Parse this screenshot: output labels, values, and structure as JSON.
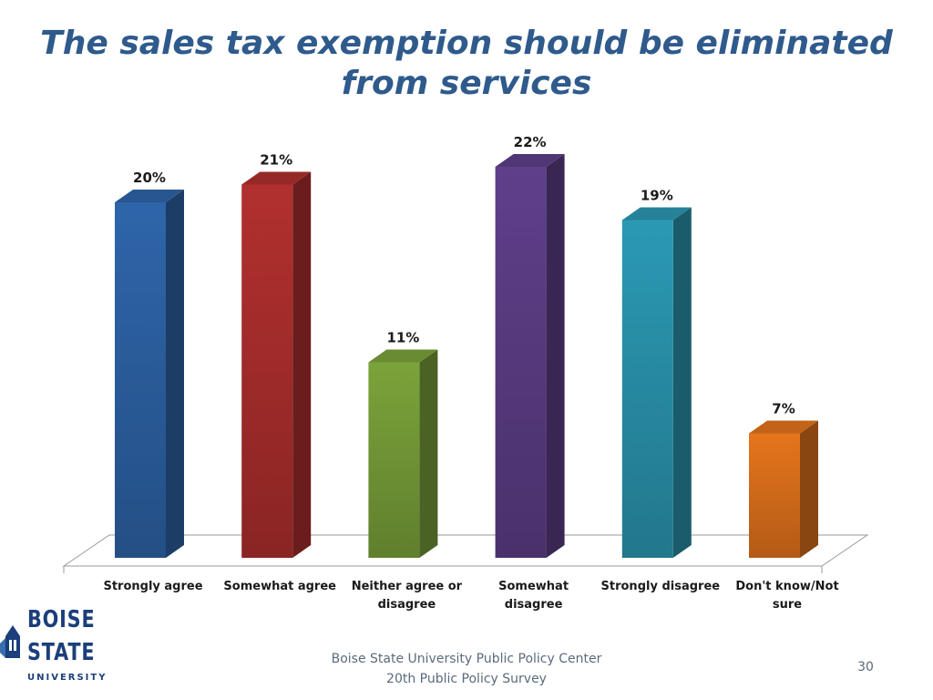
{
  "slide": {
    "title": "The sales tax exemption should be eliminated from services",
    "footer_line1": "Boise State University  Public Policy Center",
    "footer_line2": "20th Public Policy Survey",
    "page_number": "30"
  },
  "logo": {
    "line1": "BOISE",
    "line2": "STATE",
    "line3": "UNIVERSITY"
  },
  "chart_data": {
    "type": "bar",
    "title": "The sales tax exemption should be eliminated from services",
    "categories": [
      "Strongly agree",
      "Somewhat agree",
      "Neither agree or disagree",
      "Somewhat disagree",
      "Strongly disagree",
      "Don't know/Not sure"
    ],
    "category_lines": [
      [
        "Strongly agree"
      ],
      [
        "Somewhat agree"
      ],
      [
        "Neither agree or",
        "disagree"
      ],
      [
        "Somewhat",
        "disagree"
      ],
      [
        "Strongly disagree"
      ],
      [
        "Don't know/Not",
        "sure"
      ]
    ],
    "values": [
      20,
      21,
      11,
      22,
      19,
      7
    ],
    "data_labels": [
      "20%",
      "21%",
      "11%",
      "22%",
      "19%",
      "7%"
    ],
    "unit": "%",
    "colors": [
      "#2e65aa",
      "#b1302e",
      "#7ba33a",
      "#5f3f8a",
      "#2b99b4",
      "#e5751c"
    ],
    "ylim": [
      0,
      22
    ],
    "grid": false,
    "legend": "none",
    "style": "3d-column"
  }
}
